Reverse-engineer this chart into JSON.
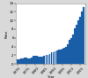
{
  "years": [
    1970,
    1971,
    1972,
    1973,
    1974,
    1975,
    1976,
    1977,
    1978,
    1979,
    1980,
    1981,
    1982,
    1983,
    1984,
    1985,
    1986,
    1987,
    1988,
    1989,
    1990,
    1991,
    1992,
    1993,
    1994,
    1995,
    1996,
    1997,
    1998,
    1999,
    2000,
    2001,
    2002,
    2003,
    2004,
    2005,
    2006,
    2007
  ],
  "rates": [
    1.0,
    1.0,
    1.3,
    1.3,
    1.4,
    1.4,
    1.3,
    1.3,
    1.4,
    1.9,
    1.9,
    1.8,
    1.7,
    1.6,
    1.7,
    1.8,
    2.1,
    2.0,
    2.2,
    2.7,
    2.6,
    2.8,
    3.0,
    3.2,
    3.3,
    3.5,
    3.7,
    4.0,
    4.5,
    5.5,
    6.0,
    6.8,
    8.2,
    9.1,
    10.0,
    10.9,
    12.1,
    13.0
  ],
  "bar_color": "#1a5ea8",
  "edge_color": "#1a5ea8",
  "xlabel": "Year",
  "ylabel": "Rate",
  "ylim": [
    0,
    14
  ],
  "yticks": [
    0,
    2,
    4,
    6,
    8,
    10,
    12,
    14
  ],
  "xtick_years": [
    1970,
    1975,
    1980,
    1985,
    1990,
    1995,
    2000,
    2005
  ],
  "bg_color": "#d9d9d9",
  "plot_bg": "#ffffff",
  "spine_color": "#888888"
}
